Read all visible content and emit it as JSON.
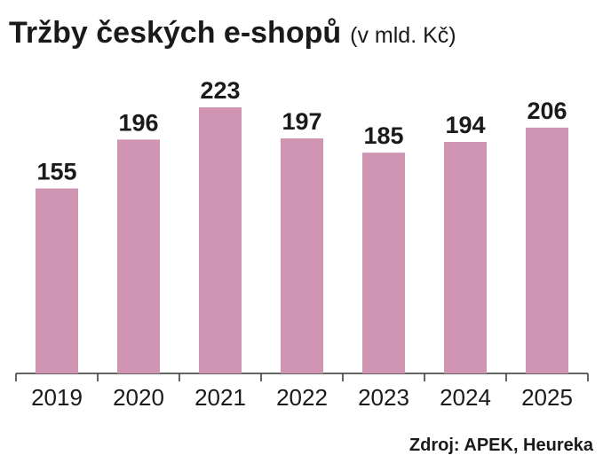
{
  "chart_data": {
    "type": "bar",
    "title": "Tržby českých e-shopů",
    "subtitle": "(v mld. Kč)",
    "categories": [
      "2019",
      "2020",
      "2021",
      "2022",
      "2023",
      "2024",
      "2025"
    ],
    "values": [
      155,
      196,
      223,
      197,
      185,
      194,
      206
    ],
    "color": "#d195b4",
    "source": "Zdroj: APEK, Heureka"
  }
}
